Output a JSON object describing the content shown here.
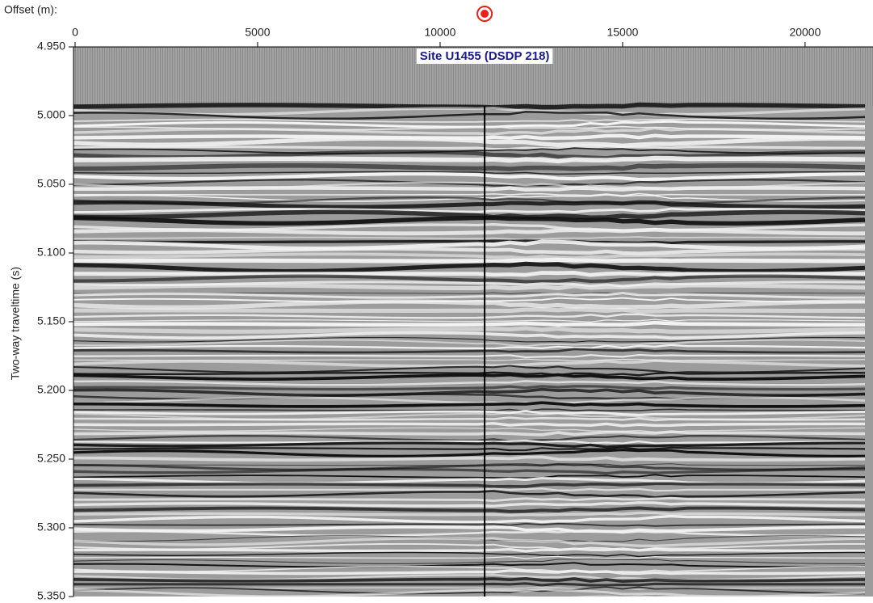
{
  "chart_data": {
    "type": "seismic",
    "xlabel": "Offset (m):",
    "ylabel": "Two-way traveltime (s)",
    "xlim": [
      0,
      21860
    ],
    "ylim": [
      4.95,
      5.35
    ],
    "xticks": [
      0,
      5000,
      10000,
      15000,
      20000
    ],
    "yticks": [
      {
        "value": 4.95,
        "label": "4.950"
      },
      {
        "value": 5.0,
        "label": "5.000"
      },
      {
        "value": 5.05,
        "label": "5.050"
      },
      {
        "value": 5.1,
        "label": "5.100"
      },
      {
        "value": 5.15,
        "label": "5.150"
      },
      {
        "value": 5.2,
        "label": "5.200"
      },
      {
        "value": 5.25,
        "label": "5.250"
      },
      {
        "value": 5.3,
        "label": "5.300"
      },
      {
        "value": 5.35,
        "label": "5.350"
      }
    ],
    "site": {
      "label": "Site U1455 (DSDP 218)",
      "x": 11220,
      "color": "#e8211b"
    },
    "seafloor": 4.993
  }
}
